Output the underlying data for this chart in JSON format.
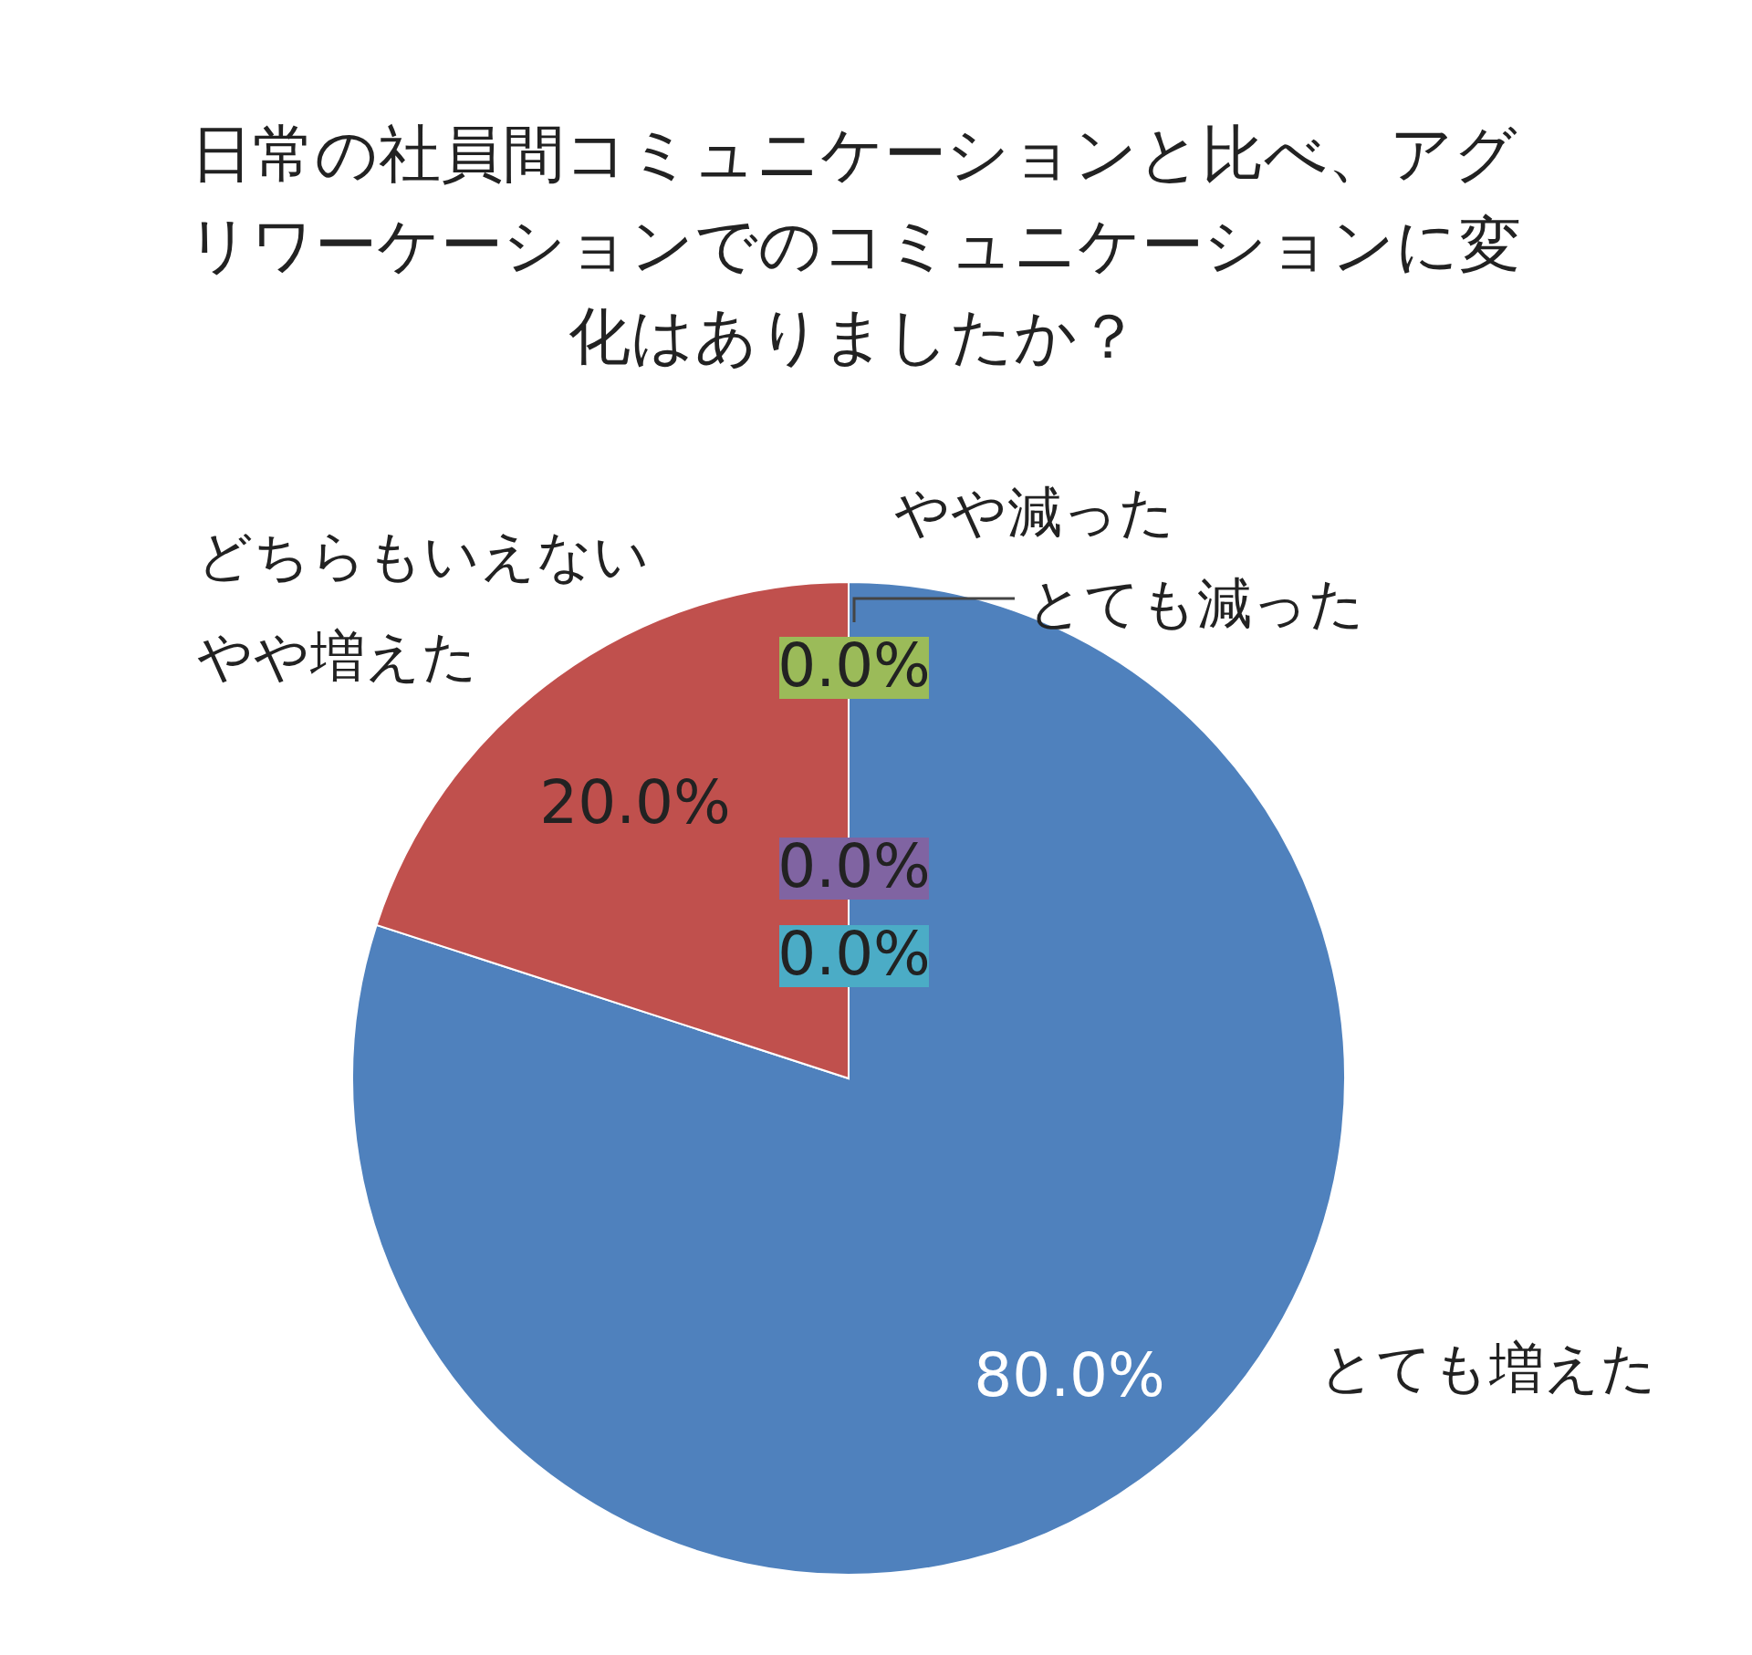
{
  "chart_data": {
    "type": "pie",
    "title": "日常の社員間コミュニケーションと比べ、アグリワーケーションでのコミュニケーションに変化はありましたか？",
    "categories": [
      "とても増えた",
      "やや増えた",
      "どちらもいえない",
      "やや減った",
      "とても減った"
    ],
    "values": [
      80,
      20,
      0,
      0,
      0
    ],
    "value_labels": [
      "80.0%",
      "20.0%",
      "0.0%",
      "0.0%",
      "0.0%"
    ],
    "colors": [
      "#4f81bd",
      "#c0504d",
      "#9bbb59",
      "#8064a2",
      "#4bacc6"
    ]
  }
}
